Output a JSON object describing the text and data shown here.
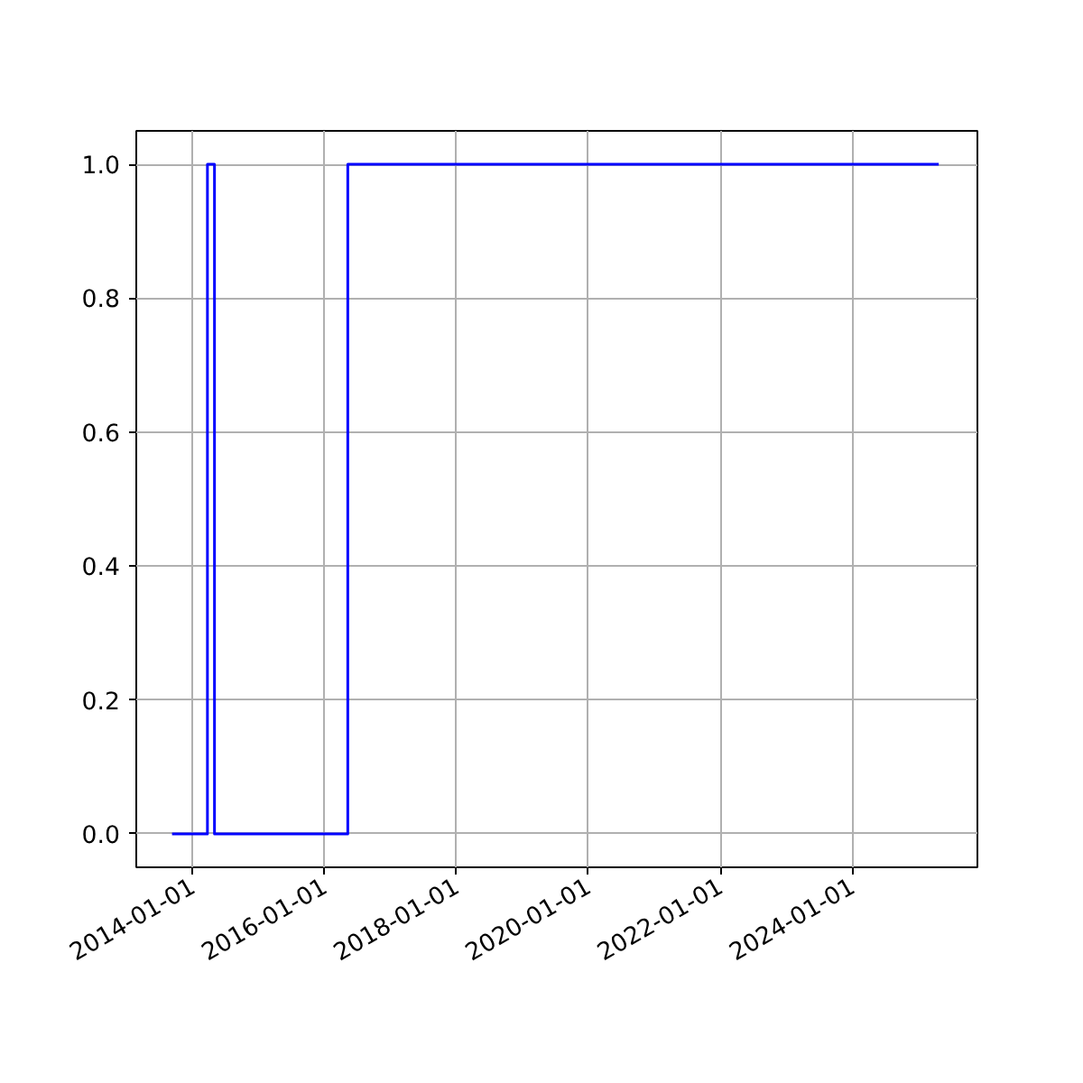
{
  "chart_data": {
    "type": "step",
    "x": [
      "2013-09-10",
      "2014-03-25",
      "2014-05-03",
      "2016-05-10",
      "2025-04-25"
    ],
    "series": [
      {
        "color": "#0000ff",
        "values": [
          0,
          1,
          0,
          1,
          1
        ]
      }
    ],
    "xlim": [
      "2013-02-24",
      "2025-11-25"
    ],
    "xticks": [
      "2014-01-01",
      "2016-01-01",
      "2018-01-01",
      "2020-01-01",
      "2022-01-01",
      "2024-01-01"
    ],
    "ylim": [
      -0.05,
      1.05
    ],
    "yticks": [
      {
        "value": 0,
        "label": "0.0"
      },
      {
        "value": 0.2,
        "label": "0.2"
      },
      {
        "value": 0.4,
        "label": "0.4"
      },
      {
        "value": 0.6,
        "label": "0.6"
      },
      {
        "value": 0.8,
        "label": "0.8"
      },
      {
        "value": 1,
        "label": "1.0"
      }
    ],
    "grid": true,
    "line_style": "solid"
  }
}
